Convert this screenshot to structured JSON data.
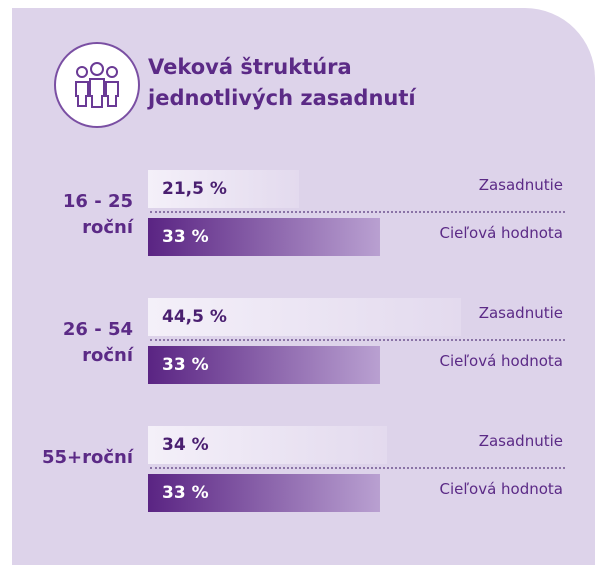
{
  "chart_data": {
    "type": "bar",
    "orientation": "horizontal",
    "title": "Veková štruktúra jednotlivých zasadnutí",
    "categories": [
      "16 - 25 roční",
      "26 - 54 roční",
      "55+roční"
    ],
    "series": [
      {
        "name": "Zasadnutie",
        "color": "#f4f0f9",
        "values": [
          21.5,
          44.5,
          34
        ],
        "value_labels": [
          "21,5 %",
          "44,5 %",
          "34 %"
        ]
      },
      {
        "name": "Cieľová hodnota",
        "color": "#5a2483",
        "values": [
          33,
          33,
          33
        ],
        "value_labels": [
          "33 %",
          "33 %",
          "33 %"
        ]
      }
    ]
  }
}
